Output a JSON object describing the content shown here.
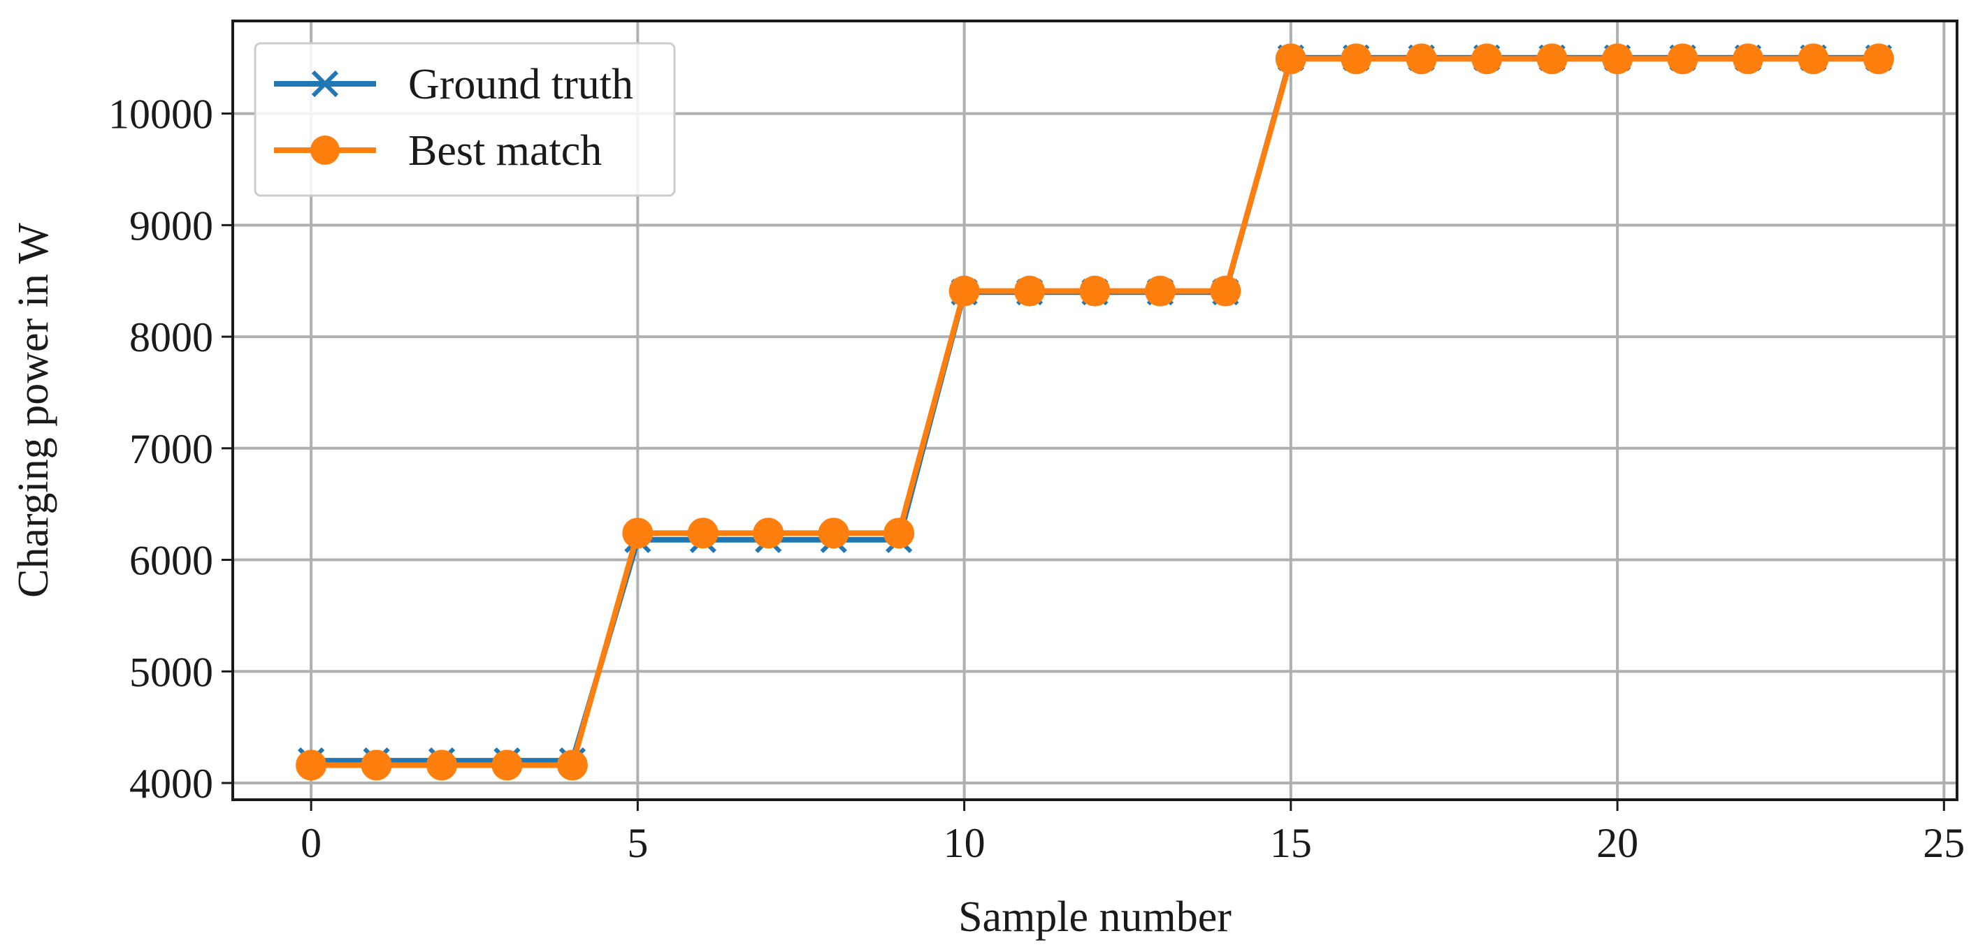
{
  "chart_data": {
    "type": "line",
    "title": "",
    "xlabel": "Sample number",
    "ylabel": "Charging power in W",
    "xlim": [
      -1.2,
      25.2
    ],
    "ylim": [
      3850,
      10830
    ],
    "xticks": [
      0,
      5,
      10,
      15,
      20,
      25
    ],
    "yticks": [
      4000,
      5000,
      6000,
      7000,
      8000,
      9000,
      10000
    ],
    "grid": true,
    "legend_position": "top-left",
    "x": [
      0,
      1,
      2,
      3,
      4,
      5,
      6,
      7,
      8,
      9,
      10,
      11,
      12,
      13,
      14,
      15,
      16,
      17,
      18,
      19,
      20,
      21,
      22,
      23,
      24
    ],
    "series": [
      {
        "name": "Ground truth",
        "color": "#1f77b4",
        "marker": "x",
        "values": [
          4200,
          4200,
          4200,
          4200,
          4200,
          6180,
          6180,
          6180,
          6180,
          6180,
          8400,
          8400,
          8400,
          8400,
          8400,
          10500,
          10500,
          10500,
          10500,
          10500,
          10500,
          10500,
          10500,
          10500,
          10500
        ]
      },
      {
        "name": "Best match",
        "color": "#ff7f0e",
        "marker": "o",
        "values": [
          4160,
          4160,
          4160,
          4160,
          4160,
          6240,
          6240,
          6240,
          6240,
          6240,
          8410,
          8410,
          8410,
          8410,
          8410,
          10490,
          10490,
          10490,
          10490,
          10490,
          10490,
          10490,
          10490,
          10490,
          10490
        ]
      }
    ]
  }
}
